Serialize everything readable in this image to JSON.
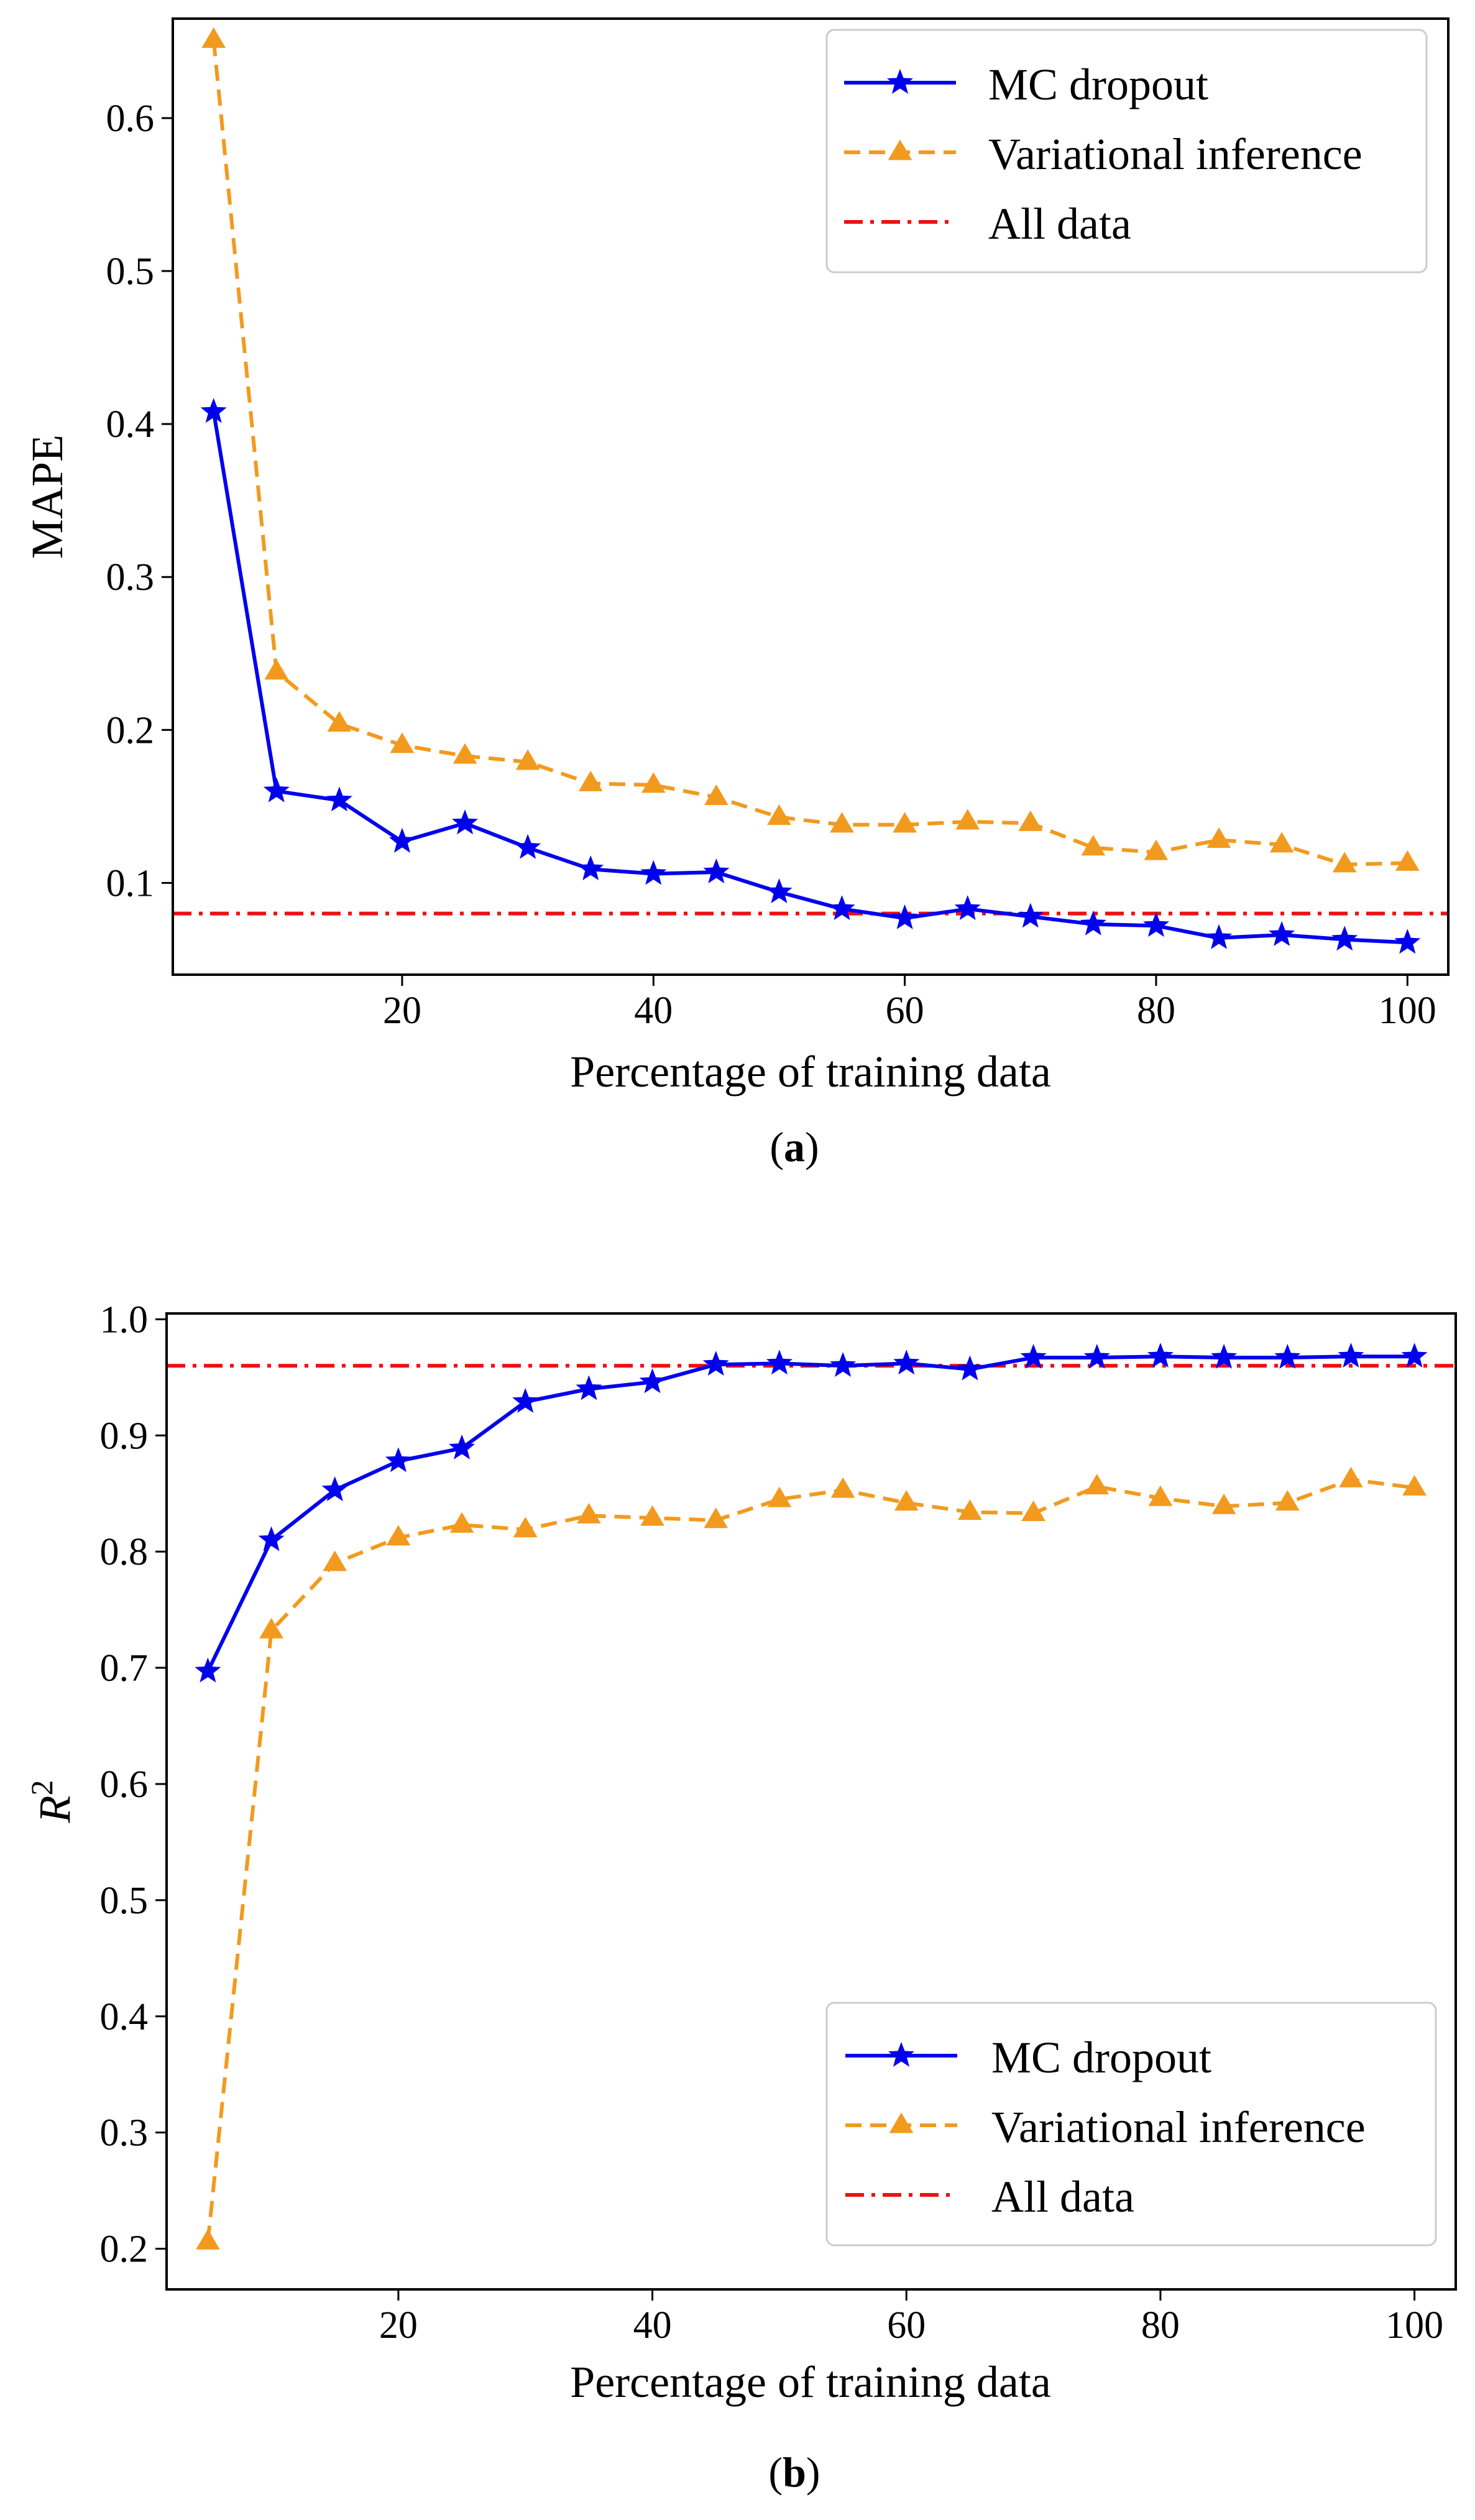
{
  "chart_data": [
    {
      "type": "line",
      "ylabel": "MAPE",
      "xlabel": "Percentage of training data",
      "caption_letter": "a",
      "xlim": [
        1.75,
        103.25
      ],
      "ylim": [
        0.04,
        0.665
      ],
      "xticks": [
        20,
        40,
        60,
        80,
        100
      ],
      "yticks": [
        0.1,
        0.2,
        0.3,
        0.4,
        0.5,
        0.6
      ],
      "grid": false,
      "legend_position": "top-right",
      "x": [
        5,
        10,
        15,
        20,
        25,
        30,
        35,
        40,
        45,
        50,
        55,
        60,
        65,
        70,
        75,
        80,
        85,
        90,
        95,
        100
      ],
      "series": [
        {
          "name": "MC dropout",
          "color": "#0000ee",
          "style": "solid",
          "marker": "star",
          "values": [
            0.408,
            0.16,
            0.154,
            0.127,
            0.139,
            0.123,
            0.109,
            0.106,
            0.107,
            0.094,
            0.083,
            0.077,
            0.083,
            0.078,
            0.073,
            0.072,
            0.064,
            0.066,
            0.063,
            0.061
          ]
        },
        {
          "name": "Variational inference",
          "color": "#f29a1e",
          "style": "dashed",
          "marker": "triangle",
          "values": [
            0.651,
            0.238,
            0.204,
            0.19,
            0.183,
            0.179,
            0.165,
            0.164,
            0.156,
            0.143,
            0.138,
            0.138,
            0.14,
            0.139,
            0.123,
            0.12,
            0.128,
            0.125,
            0.112,
            0.113
          ]
        }
      ],
      "reference_lines": [
        {
          "name": "All data",
          "y": 0.08,
          "color": "#ee1111",
          "style": "dashdot"
        }
      ]
    },
    {
      "type": "line",
      "ylabel": "R",
      "ylabel_superscript": "2",
      "xlabel": "Percentage of training data",
      "caption_letter": "b",
      "xlim": [
        1.75,
        103.25
      ],
      "ylim": [
        0.165,
        1.005
      ],
      "xticks": [
        20,
        40,
        60,
        80,
        100
      ],
      "yticks": [
        0.2,
        0.3,
        0.4,
        0.5,
        0.6,
        0.7,
        0.8,
        0.9,
        1.0
      ],
      "grid": false,
      "legend_position": "bottom-right",
      "x": [
        5,
        10,
        15,
        20,
        25,
        30,
        35,
        40,
        45,
        50,
        55,
        60,
        65,
        70,
        75,
        80,
        85,
        90,
        95,
        100
      ],
      "series": [
        {
          "name": "MC dropout",
          "color": "#0000ee",
          "style": "solid",
          "marker": "star",
          "values": [
            0.697,
            0.81,
            0.853,
            0.878,
            0.889,
            0.929,
            0.94,
            0.946,
            0.961,
            0.962,
            0.96,
            0.962,
            0.957,
            0.967,
            0.967,
            0.968,
            0.967,
            0.967,
            0.968,
            0.968
          ]
        },
        {
          "name": "Variational inference",
          "color": "#f29a1e",
          "style": "dashed",
          "marker": "triangle",
          "values": [
            0.206,
            0.732,
            0.79,
            0.812,
            0.823,
            0.819,
            0.831,
            0.829,
            0.827,
            0.845,
            0.853,
            0.842,
            0.834,
            0.833,
            0.856,
            0.846,
            0.839,
            0.842,
            0.862,
            0.855
          ]
        }
      ],
      "reference_lines": [
        {
          "name": "All data",
          "y": 0.96,
          "color": "#ee1111",
          "style": "dashdot"
        }
      ]
    }
  ]
}
